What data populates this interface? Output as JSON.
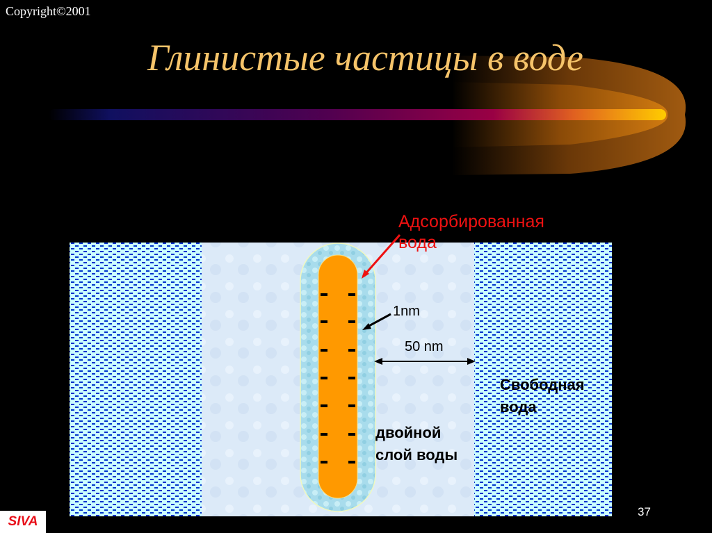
{
  "copyright": "Copyright©2001",
  "title": "Глинистые частицы в воде",
  "labels": {
    "adsorbed_water": "Адсорбированная вода",
    "one_nm": "1nm",
    "fifty_nm": "50 nm",
    "free_water": "Свободная вода",
    "double_layer": "двойной слой воды"
  },
  "page_number": "37",
  "logo": "SIVA",
  "colors": {
    "title": "#f6c46a",
    "particle": "#ff9900",
    "free_water_bg": "#ccffff",
    "free_water_dash": "#0033cc",
    "label_red": "#ee1111"
  }
}
